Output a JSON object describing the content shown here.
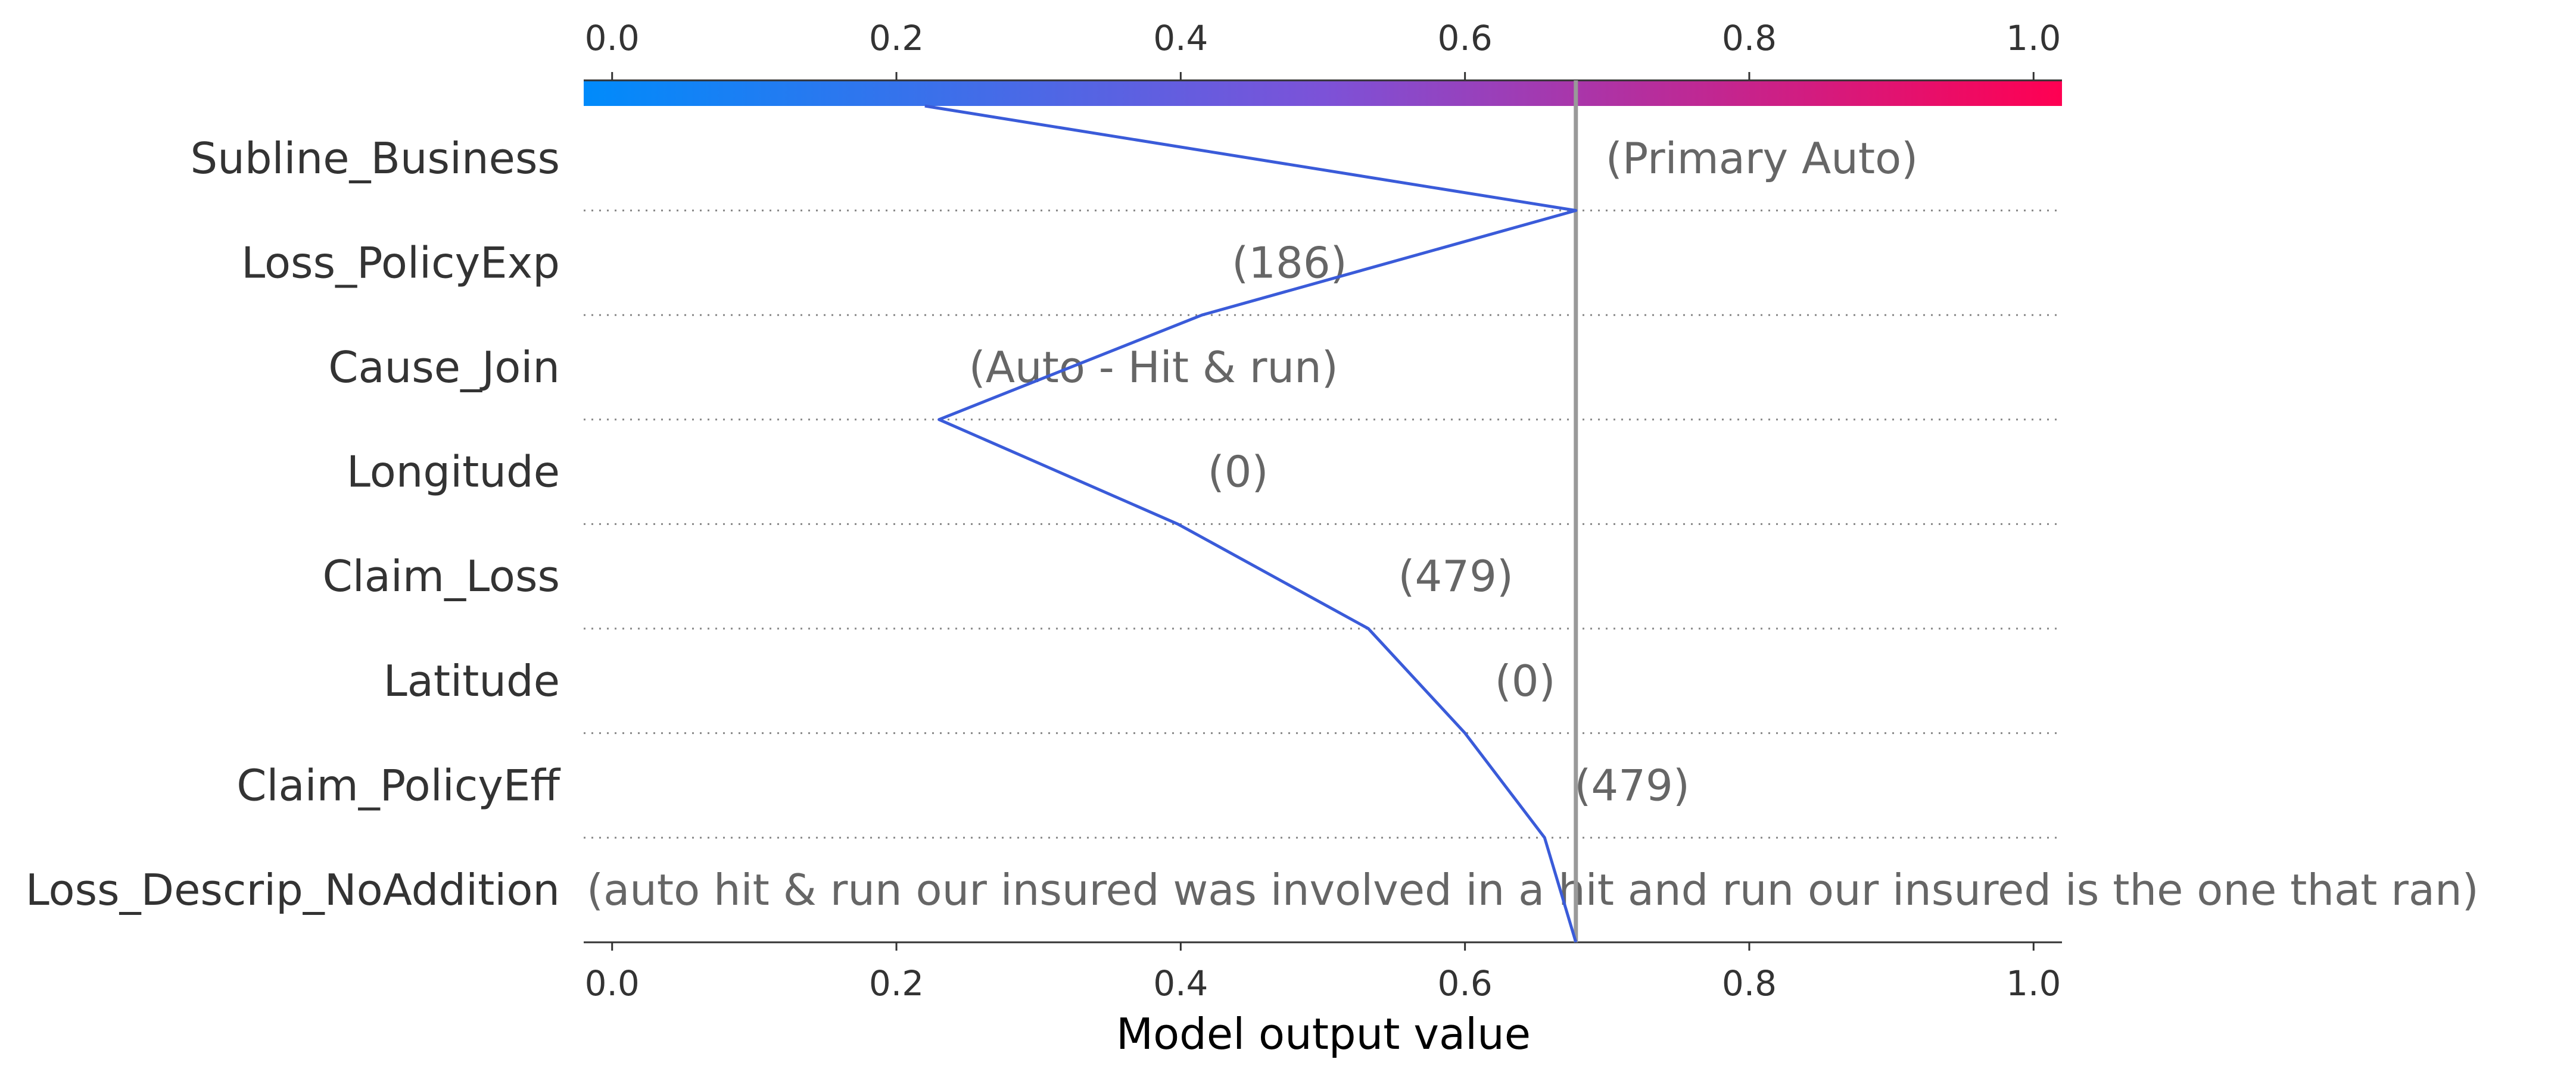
{
  "chart_data": {
    "type": "line",
    "chart_kind": "shap-decision-plot",
    "xlabel": "Model output value",
    "xlim": [
      -0.02,
      1.02
    ],
    "xticks": [
      0.0,
      0.2,
      0.4,
      0.6,
      0.8,
      1.0
    ],
    "xtick_labels": [
      "0.0",
      "0.2",
      "0.4",
      "0.6",
      "0.8",
      "1.0"
    ],
    "base_value": 0.22,
    "model_output": 0.678,
    "features": [
      {
        "name": "Subline_Business",
        "value_label": "(Primary Auto)",
        "cumulative_output": 0.678
      },
      {
        "name": "Loss_PolicyExp",
        "value_label": "(186)",
        "cumulative_output": 0.415
      },
      {
        "name": "Cause_Join",
        "value_label": "(Auto - Hit & run)",
        "cumulative_output": 0.23
      },
      {
        "name": "Longitude",
        "value_label": "(0)",
        "cumulative_output": 0.398
      },
      {
        "name": "Claim_Loss",
        "value_label": "(479)",
        "cumulative_output": 0.532
      },
      {
        "name": "Latitude",
        "value_label": "(0)",
        "cumulative_output": 0.6
      },
      {
        "name": "Claim_PolicyEff",
        "value_label": "(479)",
        "cumulative_output": 0.656
      },
      {
        "name": "Loss_Descrip_NoAddition",
        "value_label": "(auto   hit & run   our insured was involved in a hit and run  our insured is the one that ran)",
        "cumulative_output": 0.678
      }
    ],
    "line_color": "#3a5bd9",
    "reference_line_color": "#999999",
    "colorbar": {
      "low_color": "#008bfb",
      "mid_color": "#7c52d8",
      "high_color": "#ff0052"
    },
    "grid": "dotted-rows"
  }
}
